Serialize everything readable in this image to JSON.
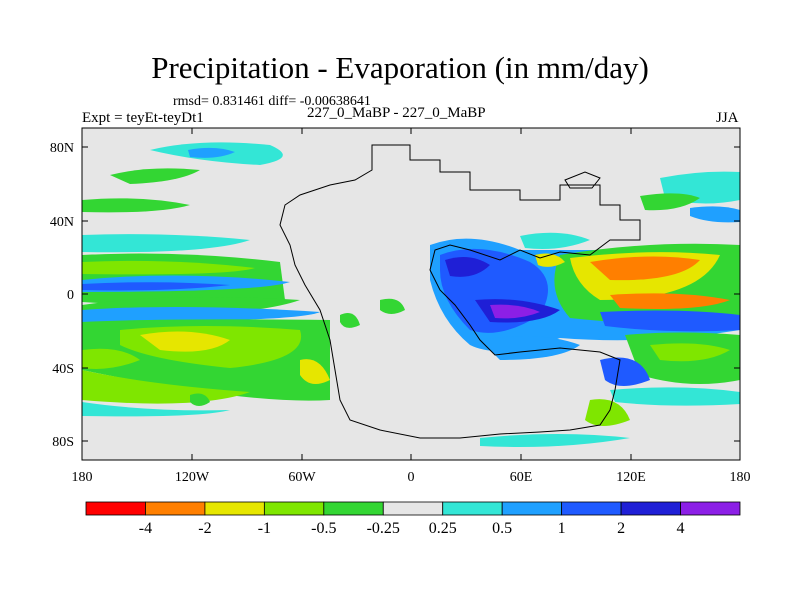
{
  "title": "Precipitation - Evaporation (in mm/day)",
  "stats_line": "rmsd= 0.831461 diff= -0.00638641",
  "experiment": "Expt = teyEt-teyDt1",
  "comparison": "227_0_MaBP - 227_0_MaBP",
  "season": "JJA",
  "map": {
    "projection": "cylindrical equidistant",
    "lat_ticks": [
      "80N",
      "40N",
      "0",
      "40S",
      "80S"
    ],
    "lon_ticks": [
      "180",
      "120W",
      "60W",
      "0",
      "60E",
      "120E",
      "180"
    ],
    "background_color": "#e6e6e6",
    "coastline": "Pangaea supercontinent outline"
  },
  "colorbar": {
    "colors": [
      "#ff0000",
      "#ff7f00",
      "#e6e600",
      "#7fe600",
      "#33d633",
      "#e6e6e6",
      "#33e6d6",
      "#1fa0ff",
      "#1f5aff",
      "#1f1fd6",
      "#8c1fe6"
    ],
    "labels": [
      "-4",
      "-2",
      "-1",
      "-0.5",
      "-0.25",
      "0.25",
      "0.5",
      "1",
      "2",
      "4"
    ]
  }
}
